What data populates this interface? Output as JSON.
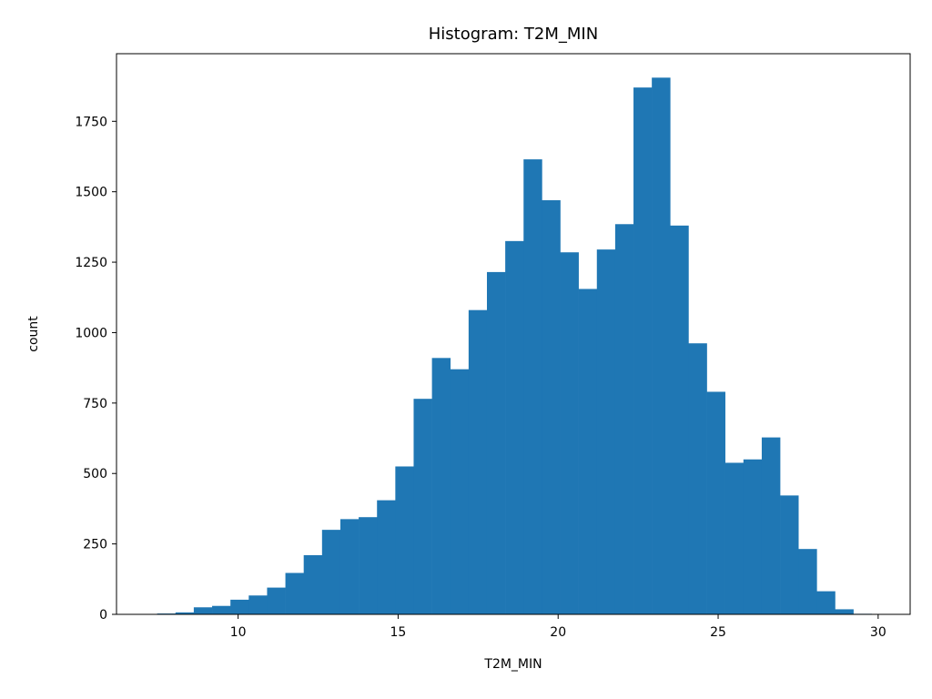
{
  "chart_data": {
    "type": "bar",
    "title": "Histogram: T2M_MIN",
    "xlabel": "T2M_MIN",
    "ylabel": "count",
    "xlim": [
      6.2,
      31.0
    ],
    "ylim": [
      0,
      1990
    ],
    "x_ticks": [
      10,
      15,
      20,
      25,
      30
    ],
    "y_ticks": [
      0,
      250,
      500,
      750,
      1000,
      1250,
      1500,
      1750
    ],
    "bin_start": 7.47,
    "bin_width": 0.5725,
    "values": [
      3,
      7,
      25,
      30,
      52,
      67,
      95,
      147,
      210,
      300,
      338,
      345,
      405,
      525,
      765,
      910,
      870,
      1080,
      1215,
      1325,
      1615,
      1470,
      1285,
      1155,
      1295,
      1385,
      1870,
      1905,
      1380,
      962,
      790,
      538,
      550,
      628,
      422,
      232,
      82,
      18,
      2
    ],
    "grid": false,
    "color": "#1f77b4"
  }
}
